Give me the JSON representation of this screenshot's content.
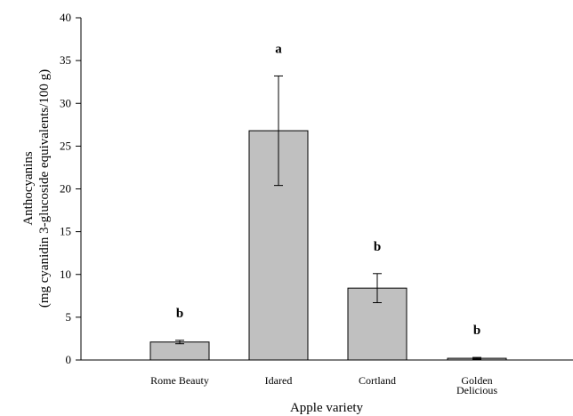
{
  "chart_data": {
    "type": "bar",
    "categories": [
      "Rome Beauty",
      "Idared",
      "Cortland",
      "Golden Delicious"
    ],
    "category_lines": [
      [
        "Rome Beauty"
      ],
      [
        "Idared"
      ],
      [
        "Cortland"
      ],
      [
        "Golden",
        "Delicious"
      ]
    ],
    "values": [
      2.1,
      26.8,
      8.4,
      0.2
    ],
    "errors": [
      0.2,
      6.4,
      1.7,
      0.1
    ],
    "significance": [
      "b",
      "a",
      "b",
      "b"
    ],
    "xlabel": "Apple variety",
    "ylabel_lines": [
      "Anthocyanins",
      "(mg cyanidin 3-glucoside equivalents/100 g)"
    ],
    "ylim": [
      0,
      40
    ],
    "yticks": [
      0,
      5,
      10,
      15,
      20,
      25,
      30,
      35,
      40
    ],
    "grid": false,
    "legend": "none",
    "bar_color": "#c0c0c0"
  }
}
